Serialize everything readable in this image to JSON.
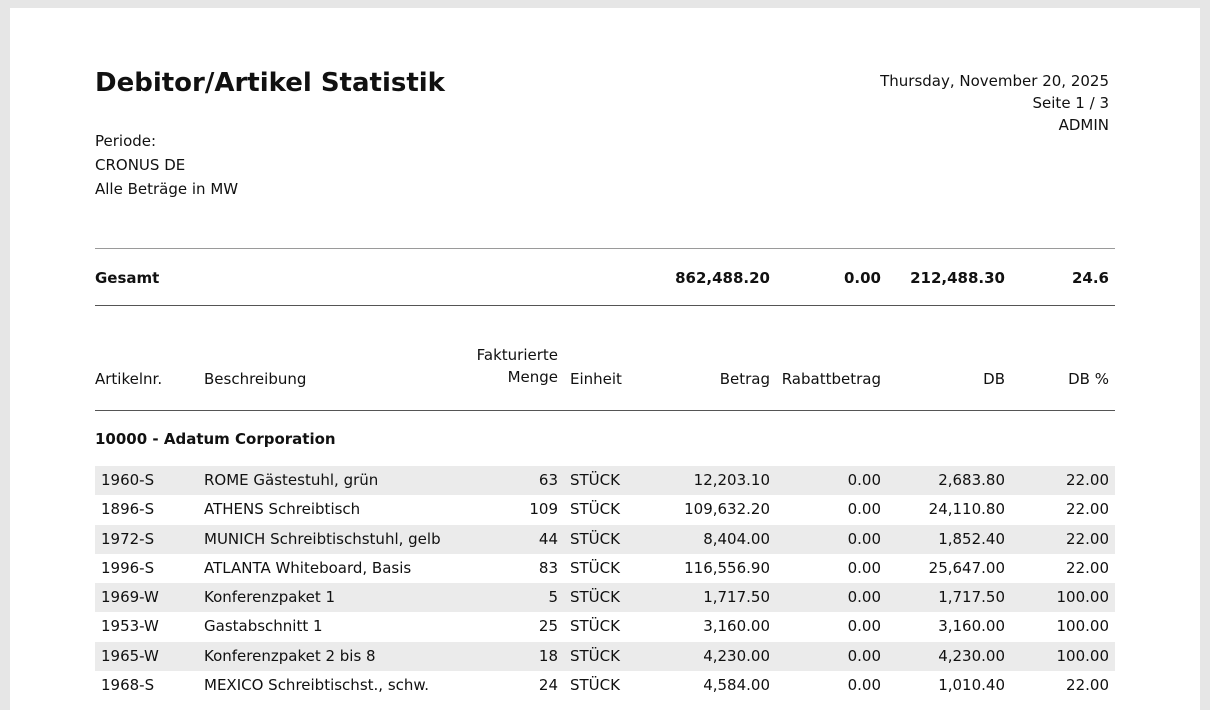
{
  "report": {
    "title": "Debitor/Artikel Statistik",
    "date": "Thursday, November 20, 2025",
    "page": "Seite 1 / 3",
    "user": "ADMIN",
    "periode_label": "Periode:",
    "company": "CRONUS DE",
    "currency_note": "Alle Beträge in MW"
  },
  "total": {
    "label": "Gesamt",
    "betrag": "862,488.20",
    "rabattbetrag": "0.00",
    "db": "212,488.30",
    "db_pct": "24.6"
  },
  "columns": {
    "artikelnr": "Artikelnr.",
    "beschreibung": "Beschreibung",
    "menge_line1": "Fakturierte",
    "menge_line2": "Menge",
    "einheit": "Einheit",
    "betrag": "Betrag",
    "rabattbetrag": "Rabattbetrag",
    "db": "DB",
    "db_pct": "DB %"
  },
  "group": {
    "title": "10000 - Adatum Corporation"
  },
  "rows": [
    {
      "artikelnr": "1960-S",
      "beschreibung": "ROME Gästestuhl, grün",
      "menge": "63",
      "einheit": "STÜCK",
      "betrag": "12,203.10",
      "rabatt": "0.00",
      "db": "2,683.80",
      "db_pct": "22.00"
    },
    {
      "artikelnr": "1896-S",
      "beschreibung": "ATHENS Schreibtisch",
      "menge": "109",
      "einheit": "STÜCK",
      "betrag": "109,632.20",
      "rabatt": "0.00",
      "db": "24,110.80",
      "db_pct": "22.00"
    },
    {
      "artikelnr": "1972-S",
      "beschreibung": "MUNICH Schreibtischstuhl, gelb",
      "menge": "44",
      "einheit": "STÜCK",
      "betrag": "8,404.00",
      "rabatt": "0.00",
      "db": "1,852.40",
      "db_pct": "22.00"
    },
    {
      "artikelnr": "1996-S",
      "beschreibung": "ATLANTA Whiteboard, Basis",
      "menge": "83",
      "einheit": "STÜCK",
      "betrag": "116,556.90",
      "rabatt": "0.00",
      "db": "25,647.00",
      "db_pct": "22.00"
    },
    {
      "artikelnr": "1969-W",
      "beschreibung": "Konferenzpaket 1",
      "menge": "5",
      "einheit": "STÜCK",
      "betrag": "1,717.50",
      "rabatt": "0.00",
      "db": "1,717.50",
      "db_pct": "100.00"
    },
    {
      "artikelnr": "1953-W",
      "beschreibung": "Gastabschnitt 1",
      "menge": "25",
      "einheit": "STÜCK",
      "betrag": "3,160.00",
      "rabatt": "0.00",
      "db": "3,160.00",
      "db_pct": "100.00"
    },
    {
      "artikelnr": "1965-W",
      "beschreibung": "Konferenzpaket 2 bis 8",
      "menge": "18",
      "einheit": "STÜCK",
      "betrag": "4,230.00",
      "rabatt": "0.00",
      "db": "4,230.00",
      "db_pct": "100.00"
    },
    {
      "artikelnr": "1968-S",
      "beschreibung": "MEXICO Schreibtischst., schw.",
      "menge": "24",
      "einheit": "STÜCK",
      "betrag": "4,584.00",
      "rabatt": "0.00",
      "db": "1,010.40",
      "db_pct": "22.00"
    }
  ]
}
